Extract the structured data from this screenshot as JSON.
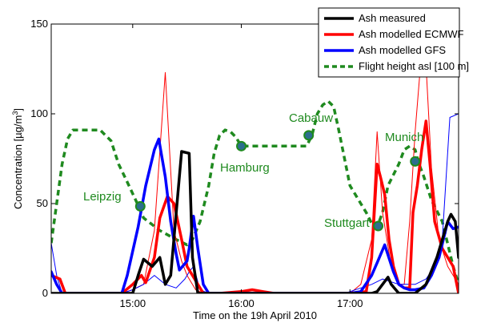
{
  "chart_data": {
    "type": "line",
    "title": "",
    "xlabel": "Time on the 19h April 2010",
    "ylabel": "Concentration [µg/m³]",
    "xlim": [
      14.25,
      18.0
    ],
    "ylim": [
      0,
      150
    ],
    "x_ticks": [
      15,
      16,
      17
    ],
    "x_tick_labels": [
      "15:00",
      "16:00",
      "17:00"
    ],
    "y_ticks": [
      0,
      50,
      100,
      150
    ],
    "grid": false,
    "legend_position": "top-right",
    "legend": [
      {
        "label": "Ash measured",
        "color": "#000000",
        "dashed": false
      },
      {
        "label": "Ash modelled ECMWF",
        "color": "#ff0000",
        "dashed": false
      },
      {
        "label": "Ash modelled GFS",
        "color": "#0000ff",
        "dashed": false
      },
      {
        "label": "Flight height asl [100 m]",
        "color": "#1f8a1f",
        "dashed": true
      }
    ],
    "series": [
      {
        "key": "flight",
        "color": "#1f8a1f",
        "width": 3.5,
        "dashed": true,
        "points": [
          [
            14.25,
            28
          ],
          [
            14.3,
            50
          ],
          [
            14.35,
            72
          ],
          [
            14.4,
            86
          ],
          [
            14.45,
            91
          ],
          [
            14.55,
            91
          ],
          [
            14.7,
            91
          ],
          [
            14.8,
            85
          ],
          [
            14.87,
            72
          ],
          [
            14.95,
            62
          ],
          [
            15.05,
            49
          ],
          [
            15.1,
            42
          ],
          [
            15.25,
            35
          ],
          [
            15.4,
            30
          ],
          [
            15.5,
            27
          ],
          [
            15.55,
            30
          ],
          [
            15.62,
            40
          ],
          [
            15.7,
            60
          ],
          [
            15.75,
            78
          ],
          [
            15.8,
            88
          ],
          [
            15.85,
            91
          ],
          [
            15.9,
            90
          ],
          [
            15.95,
            87
          ],
          [
            16.0,
            82
          ],
          [
            16.1,
            82
          ],
          [
            16.3,
            82
          ],
          [
            16.5,
            82
          ],
          [
            16.6,
            82
          ],
          [
            16.65,
            88
          ],
          [
            16.7,
            100
          ],
          [
            16.75,
            105
          ],
          [
            16.8,
            107
          ],
          [
            16.85,
            104
          ],
          [
            16.9,
            90
          ],
          [
            16.95,
            75
          ],
          [
            17.0,
            60
          ],
          [
            17.1,
            50
          ],
          [
            17.15,
            45
          ],
          [
            17.2,
            39
          ],
          [
            17.25,
            37
          ],
          [
            17.3,
            45
          ],
          [
            17.35,
            60
          ],
          [
            17.45,
            72
          ],
          [
            17.5,
            80
          ],
          [
            17.55,
            82
          ],
          [
            17.6,
            80
          ],
          [
            17.63,
            73
          ],
          [
            17.68,
            65
          ],
          [
            17.75,
            52
          ],
          [
            17.85,
            40
          ],
          [
            17.95,
            15
          ],
          [
            18.0,
            5
          ]
        ]
      },
      {
        "key": "ecmwf_thin",
        "color": "#ff0000",
        "width": 1.0,
        "dashed": false,
        "points": [
          [
            14.25,
            10
          ],
          [
            14.28,
            8
          ],
          [
            14.35,
            0
          ],
          [
            14.9,
            0
          ],
          [
            15.0,
            2
          ],
          [
            15.1,
            5
          ],
          [
            15.2,
            35
          ],
          [
            15.3,
            123
          ],
          [
            15.38,
            35
          ],
          [
            15.45,
            18
          ],
          [
            15.5,
            10
          ],
          [
            15.58,
            2
          ],
          [
            15.65,
            0
          ],
          [
            16.0,
            0
          ],
          [
            16.3,
            0
          ],
          [
            16.7,
            0
          ],
          [
            17.0,
            0
          ],
          [
            17.1,
            5
          ],
          [
            17.2,
            30
          ],
          [
            17.25,
            90
          ],
          [
            17.3,
            45
          ],
          [
            17.38,
            15
          ],
          [
            17.45,
            5
          ],
          [
            17.5,
            5
          ],
          [
            17.55,
            40
          ],
          [
            17.6,
            90
          ],
          [
            17.68,
            150
          ],
          [
            17.75,
            70
          ],
          [
            17.82,
            30
          ],
          [
            17.9,
            15
          ],
          [
            18.0,
            5
          ]
        ]
      },
      {
        "key": "gfs_thin",
        "color": "#0000ff",
        "width": 1.0,
        "dashed": false,
        "points": [
          [
            14.25,
            28
          ],
          [
            14.3,
            10
          ],
          [
            14.35,
            0
          ],
          [
            14.5,
            0
          ],
          [
            14.9,
            0
          ],
          [
            15.0,
            2
          ],
          [
            15.1,
            5
          ],
          [
            15.2,
            10
          ],
          [
            15.3,
            5
          ],
          [
            15.4,
            3
          ],
          [
            15.48,
            8
          ],
          [
            15.52,
            12
          ],
          [
            15.56,
            15
          ],
          [
            15.62,
            2
          ],
          [
            15.7,
            0
          ],
          [
            16.0,
            0
          ],
          [
            16.5,
            0
          ],
          [
            16.95,
            0
          ],
          [
            17.0,
            1
          ],
          [
            17.1,
            3
          ],
          [
            17.2,
            5
          ],
          [
            17.3,
            8
          ],
          [
            17.45,
            5
          ],
          [
            17.6,
            5
          ],
          [
            17.7,
            8
          ],
          [
            17.78,
            15
          ],
          [
            17.85,
            30
          ],
          [
            17.92,
            98
          ],
          [
            18.0,
            100
          ]
        ]
      },
      {
        "key": "ecmwf",
        "color": "#ff0000",
        "width": 3.5,
        "dashed": false,
        "points": [
          [
            14.25,
            10
          ],
          [
            14.33,
            8
          ],
          [
            14.38,
            0
          ],
          [
            14.9,
            0
          ],
          [
            15.0,
            5
          ],
          [
            15.08,
            10
          ],
          [
            15.12,
            6
          ],
          [
            15.2,
            20
          ],
          [
            15.25,
            42
          ],
          [
            15.32,
            54
          ],
          [
            15.38,
            50
          ],
          [
            15.45,
            30
          ],
          [
            15.5,
            15
          ],
          [
            15.55,
            10
          ],
          [
            15.6,
            5
          ],
          [
            15.65,
            0
          ],
          [
            15.8,
            0
          ],
          [
            16.0,
            1
          ],
          [
            16.1,
            2
          ],
          [
            16.2,
            1
          ],
          [
            16.3,
            0
          ],
          [
            16.6,
            0
          ],
          [
            17.0,
            0
          ],
          [
            17.15,
            1
          ],
          [
            17.2,
            20
          ],
          [
            17.25,
            72
          ],
          [
            17.28,
            65
          ],
          [
            17.32,
            55
          ],
          [
            17.36,
            30
          ],
          [
            17.4,
            15
          ],
          [
            17.45,
            5
          ],
          [
            17.5,
            3
          ],
          [
            17.55,
            3
          ],
          [
            17.58,
            45
          ],
          [
            17.62,
            60
          ],
          [
            17.66,
            80
          ],
          [
            17.7,
            96
          ],
          [
            17.74,
            70
          ],
          [
            17.78,
            40
          ],
          [
            17.85,
            25
          ],
          [
            17.95,
            15
          ],
          [
            18.0,
            0
          ]
        ]
      },
      {
        "key": "gfs",
        "color": "#0000ff",
        "width": 3.5,
        "dashed": false,
        "points": [
          [
            14.25,
            12
          ],
          [
            14.3,
            5
          ],
          [
            14.35,
            0
          ],
          [
            14.5,
            0
          ],
          [
            14.9,
            0
          ],
          [
            14.95,
            10
          ],
          [
            15.05,
            37
          ],
          [
            15.12,
            60
          ],
          [
            15.2,
            80
          ],
          [
            15.24,
            86
          ],
          [
            15.3,
            65
          ],
          [
            15.35,
            40
          ],
          [
            15.4,
            22
          ],
          [
            15.43,
            13
          ],
          [
            15.5,
            18
          ],
          [
            15.52,
            25
          ],
          [
            15.56,
            43
          ],
          [
            15.6,
            25
          ],
          [
            15.65,
            5
          ],
          [
            15.7,
            0
          ],
          [
            16.0,
            0
          ],
          [
            16.5,
            0
          ],
          [
            17.0,
            0
          ],
          [
            17.1,
            1
          ],
          [
            17.2,
            10
          ],
          [
            17.25,
            17
          ],
          [
            17.32,
            27
          ],
          [
            17.4,
            12
          ],
          [
            17.45,
            5
          ],
          [
            17.5,
            3
          ],
          [
            17.55,
            2
          ],
          [
            17.6,
            2
          ],
          [
            17.68,
            3
          ],
          [
            17.75,
            10
          ],
          [
            17.82,
            20
          ],
          [
            17.9,
            40
          ],
          [
            17.95,
            36
          ],
          [
            18.0,
            37
          ]
        ]
      },
      {
        "key": "measured",
        "color": "#000000",
        "width": 3.5,
        "dashed": false,
        "points": [
          [
            14.25,
            0
          ],
          [
            14.5,
            0
          ],
          [
            14.9,
            0
          ],
          [
            15.0,
            0
          ],
          [
            15.05,
            10
          ],
          [
            15.1,
            19
          ],
          [
            15.18,
            15
          ],
          [
            15.25,
            20
          ],
          [
            15.3,
            5
          ],
          [
            15.35,
            10
          ],
          [
            15.45,
            79
          ],
          [
            15.52,
            78
          ],
          [
            15.55,
            20
          ],
          [
            15.6,
            0
          ],
          [
            15.7,
            0
          ],
          [
            16.0,
            0
          ],
          [
            16.5,
            0
          ],
          [
            17.0,
            0
          ],
          [
            17.1,
            0
          ],
          [
            17.2,
            0
          ],
          [
            17.25,
            1
          ],
          [
            17.3,
            5
          ],
          [
            17.35,
            9
          ],
          [
            17.38,
            5
          ],
          [
            17.45,
            0
          ],
          [
            17.6,
            0
          ],
          [
            17.7,
            5
          ],
          [
            17.8,
            20
          ],
          [
            17.9,
            40
          ],
          [
            17.93,
            44
          ],
          [
            17.97,
            40
          ],
          [
            18.0,
            20
          ]
        ]
      }
    ],
    "waypoints": [
      {
        "label": "Leipzig",
        "x": 15.07,
        "y": 48.5
      },
      {
        "label": "Hamburg",
        "x": 16.0,
        "y": 82
      },
      {
        "label": "Cabauw",
        "x": 16.62,
        "y": 88
      },
      {
        "label": "Stuttgart",
        "x": 17.26,
        "y": 37.5
      },
      {
        "label": "Munich",
        "x": 17.6,
        "y": 73.5
      }
    ]
  }
}
